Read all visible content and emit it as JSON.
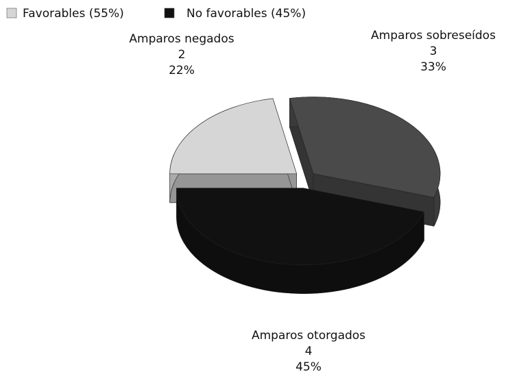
{
  "chart_data": {
    "type": "pie3d",
    "legend": [
      {
        "name": "Favorables (55%)",
        "color": "#d6d6d6"
      },
      {
        "name": "No favorables (45%)",
        "color": "#111111"
      }
    ],
    "categories": [
      "Amparos negados",
      "Amparos sobreseídos",
      "Amparos otorgados"
    ],
    "counts": [
      "2",
      "3",
      "4"
    ],
    "values": [
      22,
      33,
      45
    ],
    "value_labels": [
      "22%",
      "33%",
      "45%"
    ],
    "colors": [
      "#d6d6d6",
      "#4a4a4a",
      "#111111"
    ]
  }
}
